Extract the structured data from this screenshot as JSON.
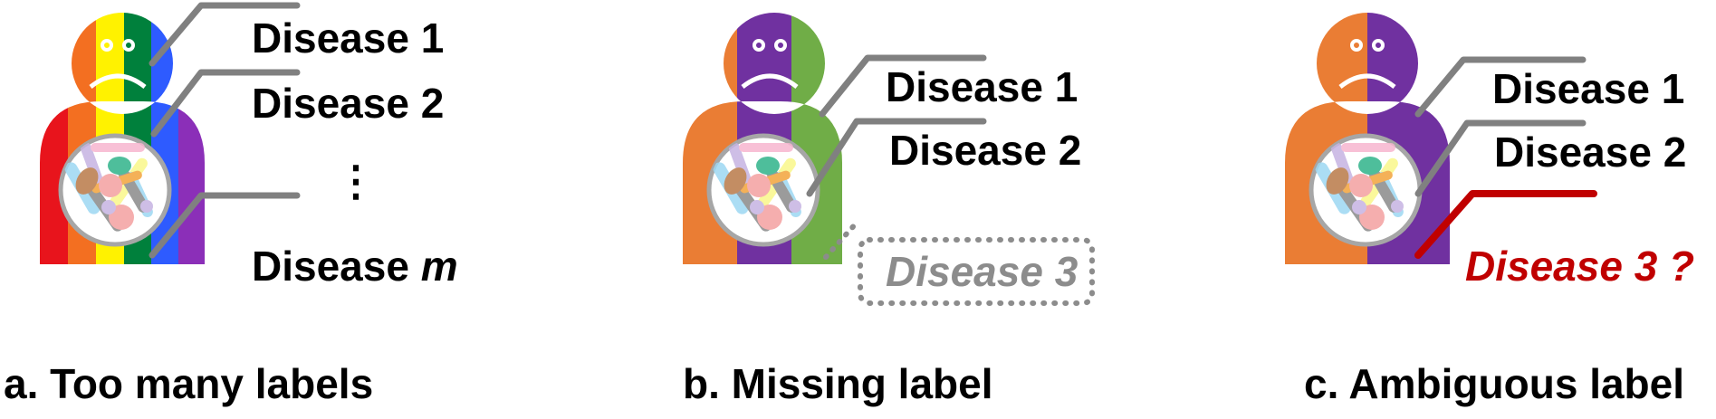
{
  "colors": {
    "rainbow": [
      "#e8141c",
      "#f36f21",
      "#fff200",
      "#00803c",
      "#2e5bff",
      "#8b2fb8"
    ],
    "orange": "#ea7d34",
    "purple": "#7031a0",
    "green": "#70ad47",
    "leader_gray": "#808080",
    "missing_gray": "#8c8c8c",
    "ambiguous_red": "#c00000"
  },
  "panels": {
    "a": {
      "caption": "a. Too many labels",
      "labels": [
        "Disease 1",
        "Disease 2",
        "⋮",
        "Disease "
      ],
      "label_m": "m"
    },
    "b": {
      "caption": "b. Missing label",
      "labels": [
        "Disease 1",
        "Disease 2"
      ],
      "missing_label": "Disease 3"
    },
    "c": {
      "caption": "c. Ambiguous label",
      "labels": [
        "Disease 1",
        "Disease 2"
      ],
      "ambiguous_label": "Disease 3 ?"
    }
  }
}
